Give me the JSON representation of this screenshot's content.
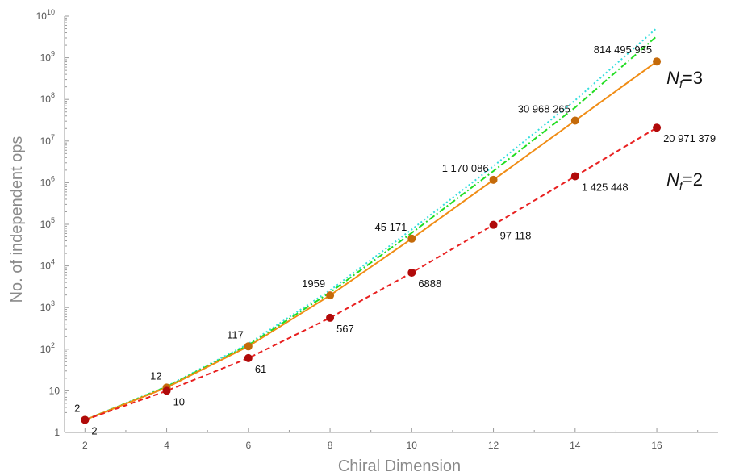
{
  "chart_data": {
    "type": "line",
    "title": "",
    "xlabel": "Chiral Dimension",
    "ylabel": "No. of independent ops",
    "x_scale": "linear",
    "y_scale": "log",
    "xlim": [
      1.5,
      17.5
    ],
    "ylim": [
      1,
      10000000000
    ],
    "grid": false,
    "x_ticks": [
      2,
      4,
      6,
      8,
      10,
      12,
      14,
      16
    ],
    "y_ticks": [
      {
        "value": 1,
        "base": "1",
        "exp": ""
      },
      {
        "value": 10,
        "base": "10",
        "exp": ""
      },
      {
        "value": 100,
        "base": "10",
        "exp": "2"
      },
      {
        "value": 1000,
        "base": "10",
        "exp": "3"
      },
      {
        "value": 10000,
        "base": "10",
        "exp": "4"
      },
      {
        "value": 100000,
        "base": "10",
        "exp": "5"
      },
      {
        "value": 1000000,
        "base": "10",
        "exp": "6"
      },
      {
        "value": 10000000,
        "base": "10",
        "exp": "7"
      },
      {
        "value": 100000000,
        "base": "10",
        "exp": "8"
      },
      {
        "value": 1000000000,
        "base": "10",
        "exp": "9"
      },
      {
        "value": 10000000000,
        "base": "10",
        "exp": "10"
      }
    ],
    "series": [
      {
        "label_main": "N",
        "label_sub": "f",
        "label_suffix": "=3",
        "color": "#f08c14",
        "marker_color": "#c46a0a",
        "dash": "",
        "markers": true,
        "x": [
          2,
          4,
          6,
          8,
          10,
          12,
          14,
          16
        ],
        "y": [
          2,
          12,
          117,
          1959,
          45171,
          1170086,
          30968265,
          814495935
        ],
        "labels": [
          "2",
          "12",
          "117",
          "1959",
          "45 171",
          "1 170 086",
          "30 968 265",
          "814 495 935"
        ],
        "label_anchor": "end",
        "label_dx": -6,
        "label_dy": -10
      },
      {
        "label_main": "N",
        "label_sub": "f",
        "label_suffix": "=2",
        "color": "#e82020",
        "marker_color": "#b00a0a",
        "dash": "6,4",
        "markers": true,
        "x": [
          2,
          4,
          6,
          8,
          10,
          12,
          14,
          16
        ],
        "y": [
          2,
          10,
          61,
          567,
          6888,
          97118,
          1425448,
          20971379
        ],
        "labels": [
          "2",
          "10",
          "61",
          "567",
          "6888",
          "97 118",
          "1 425 448",
          "20 971 379"
        ],
        "label_anchor": "start",
        "label_dx": 8,
        "label_dy": 18
      },
      {
        "color": "#22dd22",
        "dash": "8,3,2,3",
        "markers": false,
        "x": [
          2,
          4,
          6,
          8,
          10,
          12,
          14,
          16
        ],
        "y": [
          2,
          12.5,
          125,
          2300,
          62000,
          1900000,
          64000000,
          3300000000
        ]
      },
      {
        "color": "#33dddd",
        "dash": "2,3",
        "markers": false,
        "x": [
          2,
          4,
          6,
          8,
          10,
          12,
          14,
          16
        ],
        "y": [
          2,
          12.8,
          135,
          2600,
          75000,
          2500000,
          95000000,
          5200000000
        ]
      }
    ]
  }
}
